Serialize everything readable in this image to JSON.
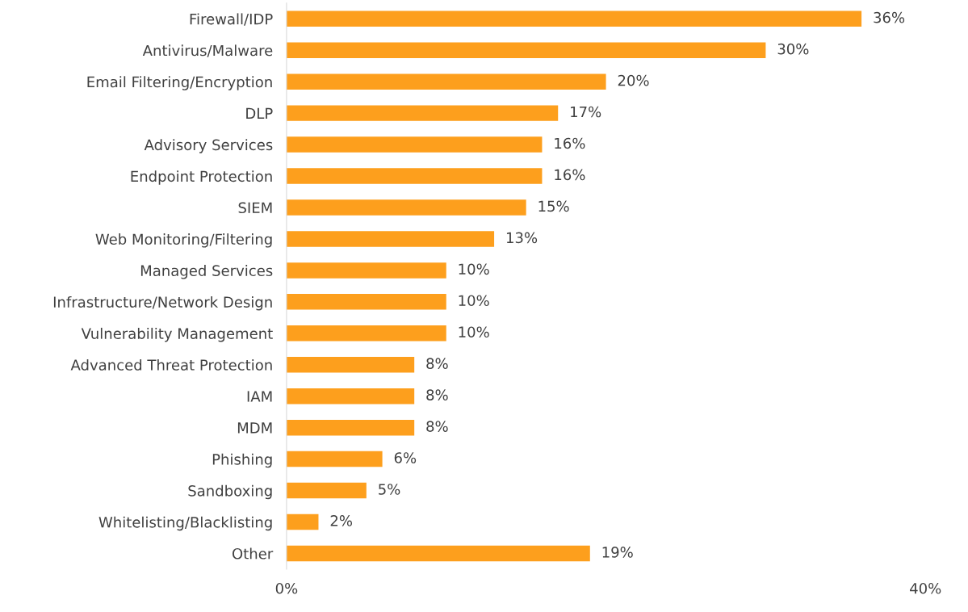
{
  "chart_data": {
    "type": "bar",
    "orientation": "horizontal",
    "color": "#fd9f1d",
    "categories": [
      "Firewall/IDP",
      "Antivirus/Malware",
      "Email Filtering/Encryption",
      "DLP",
      "Advisory Services",
      "Endpoint Protection",
      "SIEM",
      "Web Monitoring/Filtering",
      "Managed Services",
      "Infrastructure/Network Design",
      "Vulnerability Management",
      "Advanced Threat Protection",
      "IAM",
      "MDM",
      "Phishing",
      "Sandboxing",
      "Whitelisting/Blacklisting",
      "Other"
    ],
    "values": [
      36,
      30,
      20,
      17,
      16,
      16,
      15,
      13,
      10,
      10,
      10,
      8,
      8,
      8,
      6,
      5,
      2,
      19
    ],
    "value_labels": [
      "36%",
      "30%",
      "20%",
      "17%",
      "16%",
      "16%",
      "15%",
      "13%",
      "10%",
      "10%",
      "10%",
      "8%",
      "8%",
      "8%",
      "6%",
      "5%",
      "2%",
      "19%"
    ],
    "xlim": [
      0,
      40
    ],
    "xticks": [
      {
        "value": 0,
        "label": "0%"
      },
      {
        "value": 40,
        "label": "40%"
      }
    ],
    "grid": false
  }
}
